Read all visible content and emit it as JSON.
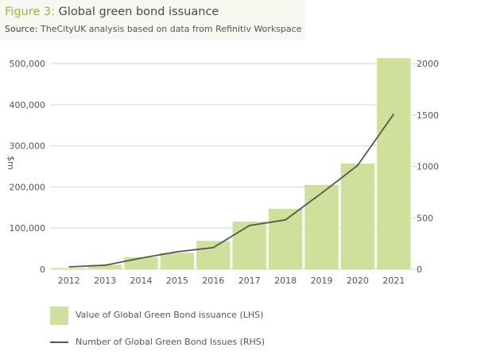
{
  "header": {
    "figure_label": "Figure 3:",
    "title": "Global green bond issuance",
    "source_label": "Source:",
    "source_text": "TheCityUK analysis based on data from Refinitiv Workspace"
  },
  "chart_data": {
    "type": "bar+line",
    "title": "Global green bond issuance",
    "ylabel": "$m",
    "categories": [
      "2012",
      "2013",
      "2014",
      "2015",
      "2016",
      "2017",
      "2018",
      "2019",
      "2020",
      "2021"
    ],
    "y_left": {
      "lim": [
        0,
        500000
      ],
      "ticks": [
        "0",
        "100,000",
        "200,000",
        "300,000",
        "400,000",
        "500,000"
      ]
    },
    "y_right": {
      "lim": [
        0,
        2000
      ],
      "ticks": [
        "0",
        "500",
        "1000",
        "1500",
        "2000"
      ]
    },
    "grid": true,
    "legend_placement": "bottom",
    "series": [
      {
        "name": "Value of Global Green Bond issuance (LHS)",
        "type": "bar",
        "axis": "left",
        "color": "#cfe09b",
        "values": [
          3000,
          11000,
          29000,
          40000,
          69000,
          116000,
          147000,
          205000,
          257000,
          513000
        ]
      },
      {
        "name": "Number of Global Green Bond Issues (RHS)",
        "type": "line",
        "axis": "right",
        "color": "#555555",
        "values": [
          23,
          39,
          108,
          170,
          210,
          425,
          480,
          740,
          1010,
          1510
        ]
      }
    ]
  }
}
